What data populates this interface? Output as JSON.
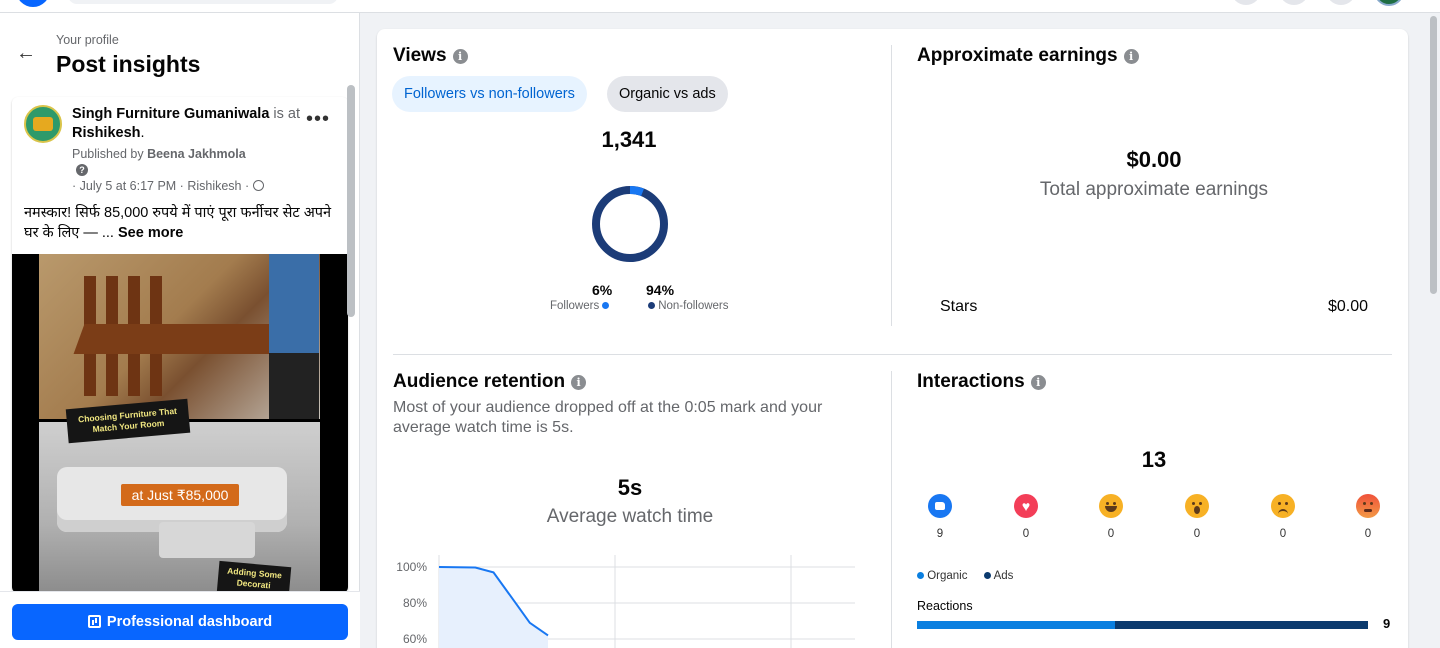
{
  "left": {
    "breadcrumb": "Your profile",
    "title": "Post insights",
    "post": {
      "page_name": "Singh Furniture Gumaniwala",
      "is_at": "is at",
      "location": "Rishikesh",
      "published_by_prefix": "Published by",
      "publisher": "Beena Jakhmola",
      "meta": "· July 5 at 6:17 PM · Rishikesh ·",
      "text": "नमस्कार! सिर्फ 85,000 रुपये में पाएं पूरा फर्नीचर सेट अपने घर के लिए — ...",
      "see_more": "See more",
      "menu_label": "•••",
      "help_glyph": "?",
      "sticker_top": "Choosing Furniture That Match Your Room",
      "price_tag": "at Just ₹85,000",
      "sticker_bottom": "Adding Some Decorati"
    },
    "dashboard_button": "Professional dashboard"
  },
  "views": {
    "title": "Views",
    "info_glyph": "i",
    "chips": [
      "Followers vs non-followers",
      "Organic vs ads"
    ],
    "total": "1,341",
    "followers_pct": "6%",
    "non_followers_pct": "94%",
    "followers_label": "Followers",
    "non_followers_label": "Non-followers",
    "colors": {
      "followers": "#1877f2",
      "non_followers": "#1c3c78"
    }
  },
  "earnings": {
    "title": "Approximate earnings",
    "total": "$0.00",
    "total_label": "Total approximate earnings",
    "stars_label": "Stars",
    "stars_value": "$0.00"
  },
  "retention": {
    "title": "Audience retention",
    "description": "Most of your audience dropped off at the 0:05 mark and your average watch time is 5s.",
    "avg_value": "5s",
    "avg_label": "Average watch time"
  },
  "interactions": {
    "title": "Interactions",
    "total": "13",
    "reactions": [
      {
        "icon": "like-icon",
        "count": "9"
      },
      {
        "icon": "love-icon",
        "count": "0"
      },
      {
        "icon": "haha-icon",
        "count": "0"
      },
      {
        "icon": "wow-icon",
        "count": "0"
      },
      {
        "icon": "sad-icon",
        "count": "0"
      },
      {
        "icon": "angry-icon",
        "count": "0"
      }
    ],
    "legend_organic": "Organic",
    "legend_ads": "Ads",
    "reactions_label": "Reactions",
    "reactions_value": "9",
    "reactions_organic_fraction": 0.44,
    "colors": {
      "organic": "#0a7fe0",
      "ads": "#0b3a6e"
    }
  },
  "chart_data": {
    "type": "line",
    "y_tick_labels": [
      "100%",
      "80%",
      "60%"
    ],
    "ylim": [
      50,
      100
    ],
    "x": [
      0,
      1,
      2,
      3,
      4,
      5,
      6
    ],
    "y": [
      100,
      99.9,
      99.7,
      97,
      83,
      69,
      62
    ],
    "series_color": "#1877f2",
    "fill_color": "#e7f0fd",
    "grid": true
  }
}
